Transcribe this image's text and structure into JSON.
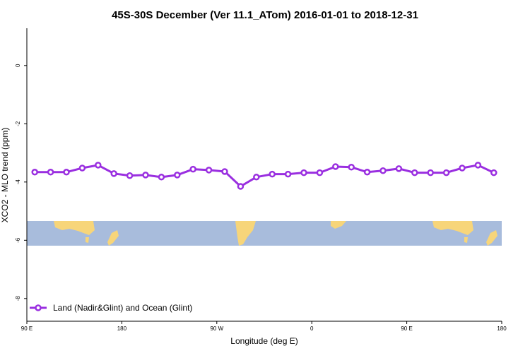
{
  "chart_data": {
    "type": "line",
    "title": "45S-30S December (Ver 11.1_ATom)   2016-01-01 to 2018-12-31",
    "xlabel": "Longitude (deg E)",
    "ylabel": "XCO2 - MLO trend (ppm)",
    "x": [
      97.5,
      112.5,
      127.5,
      142.5,
      157.5,
      172.5,
      187.5,
      202.5,
      217.5,
      232.5,
      247.5,
      262.5,
      277.5,
      292.5,
      307.5,
      322.5,
      337.5,
      352.5,
      367.5,
      382.5,
      397.5,
      412.5,
      427.5,
      442.5,
      457.5,
      472.5,
      487.5,
      502.5,
      517.5,
      532.5
    ],
    "series": [
      {
        "name": "Land (Nadir&Glint) and Ocean (Glint)",
        "color": "#9a2fe0",
        "values": [
          -3.66,
          -3.66,
          -3.66,
          -3.52,
          -3.42,
          -3.71,
          -3.78,
          -3.76,
          -3.83,
          -3.76,
          -3.56,
          -3.59,
          -3.64,
          -4.15,
          -3.83,
          -3.73,
          -3.73,
          -3.68,
          -3.68,
          -3.47,
          -3.49,
          -3.66,
          -3.61,
          -3.54,
          -3.68,
          -3.68,
          -3.68,
          -3.52,
          -3.42,
          -3.68
        ]
      }
    ],
    "xlim": [
      90,
      540
    ],
    "xticks": [
      {
        "value": 90,
        "label": "90 E"
      },
      {
        "value": 180,
        "label": "180"
      },
      {
        "value": 270,
        "label": "90 W"
      },
      {
        "value": 360,
        "label": "0"
      },
      {
        "value": 450,
        "label": "90 E"
      },
      {
        "value": 540,
        "label": "180"
      }
    ],
    "ylim": [
      -8.78,
      1.28
    ],
    "yticks": [
      0,
      -2,
      -4,
      -6,
      -8
    ],
    "legend": "bottom-left"
  }
}
